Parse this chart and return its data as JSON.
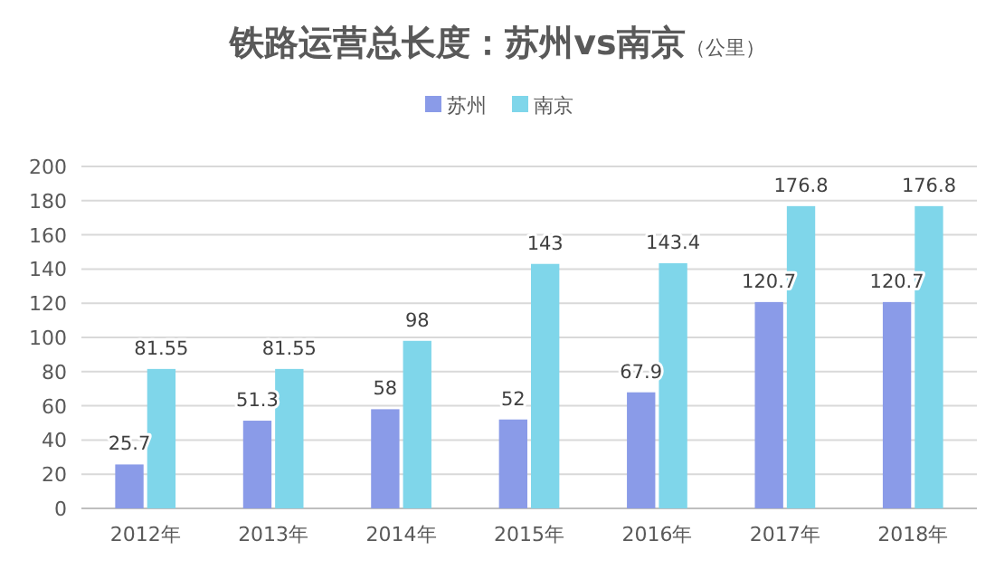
{
  "chart_data": {
    "type": "bar",
    "title": "铁路运营总长度：苏州vs南京",
    "subtitle": "（公里）",
    "categories": [
      "2012年",
      "2013年",
      "2014年",
      "2015年",
      "2016年",
      "2017年",
      "2018年"
    ],
    "series": [
      {
        "name": "苏州",
        "color": "#8a9be8",
        "values": [
          25.7,
          51.3,
          58,
          52,
          67.9,
          120.7,
          120.7
        ]
      },
      {
        "name": "南京",
        "color": "#7fd6ea",
        "values": [
          81.55,
          81.55,
          98,
          143,
          143.4,
          176.8,
          176.8
        ]
      }
    ],
    "ylim": [
      0,
      200
    ],
    "yticks": [
      0,
      20,
      40,
      60,
      80,
      100,
      120,
      140,
      160,
      180,
      200
    ],
    "grid": "y",
    "legend": "top",
    "data_labels": true
  }
}
